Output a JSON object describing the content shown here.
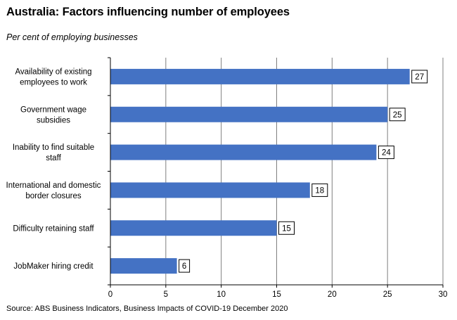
{
  "title": "Australia: Factors influencing number of employees",
  "subtitle": "Per cent of employing businesses",
  "source": "Source: ABS Business Indicators, Business Impacts of COVID-19 December 2020",
  "chart_data": {
    "type": "bar",
    "orientation": "horizontal",
    "title": "Australia: Factors influencing number of employees",
    "subtitle": "Per cent of employing businesses",
    "categories": [
      [
        "Availability of existing",
        "employees to work"
      ],
      [
        "Government wage",
        "subsidies"
      ],
      [
        "Inability to find suitable",
        "staff"
      ],
      [
        "International and domestic",
        "border closures"
      ],
      [
        "Difficulty retaining staff"
      ],
      [
        "JobMaker hiring credit"
      ]
    ],
    "values": [
      27,
      25,
      24,
      18,
      15,
      6
    ],
    "xlim": [
      0,
      30
    ],
    "xticks": [
      0,
      5,
      10,
      15,
      20,
      25,
      30
    ],
    "grid": "vertical",
    "bar_color": "#4472C4",
    "data_labels": true
  }
}
